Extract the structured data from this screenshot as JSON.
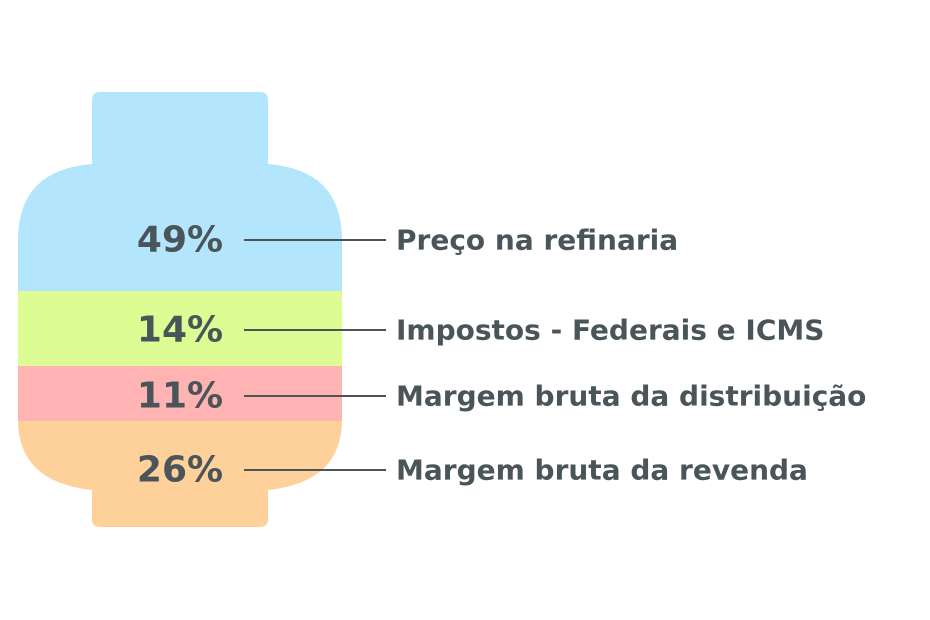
{
  "chart_data": {
    "type": "stacked-bar",
    "categories": [
      "Preço na refinaria",
      "Impostos - Federais e ICMS",
      "Margem bruta da distribuição",
      "Margem bruta da revenda"
    ],
    "values": [
      49,
      14,
      11,
      26
    ],
    "value_labels": [
      "49%",
      "14%",
      "11%",
      "26%"
    ],
    "unit": "%",
    "colors": [
      "#b3e5fc",
      "#ddfc94",
      "#ffb3b3",
      "#ffd19a"
    ],
    "text_color": "#4a5559",
    "leader_color": "#4a5559",
    "shape": "gas-cylinder",
    "legend": "labels to the right"
  }
}
